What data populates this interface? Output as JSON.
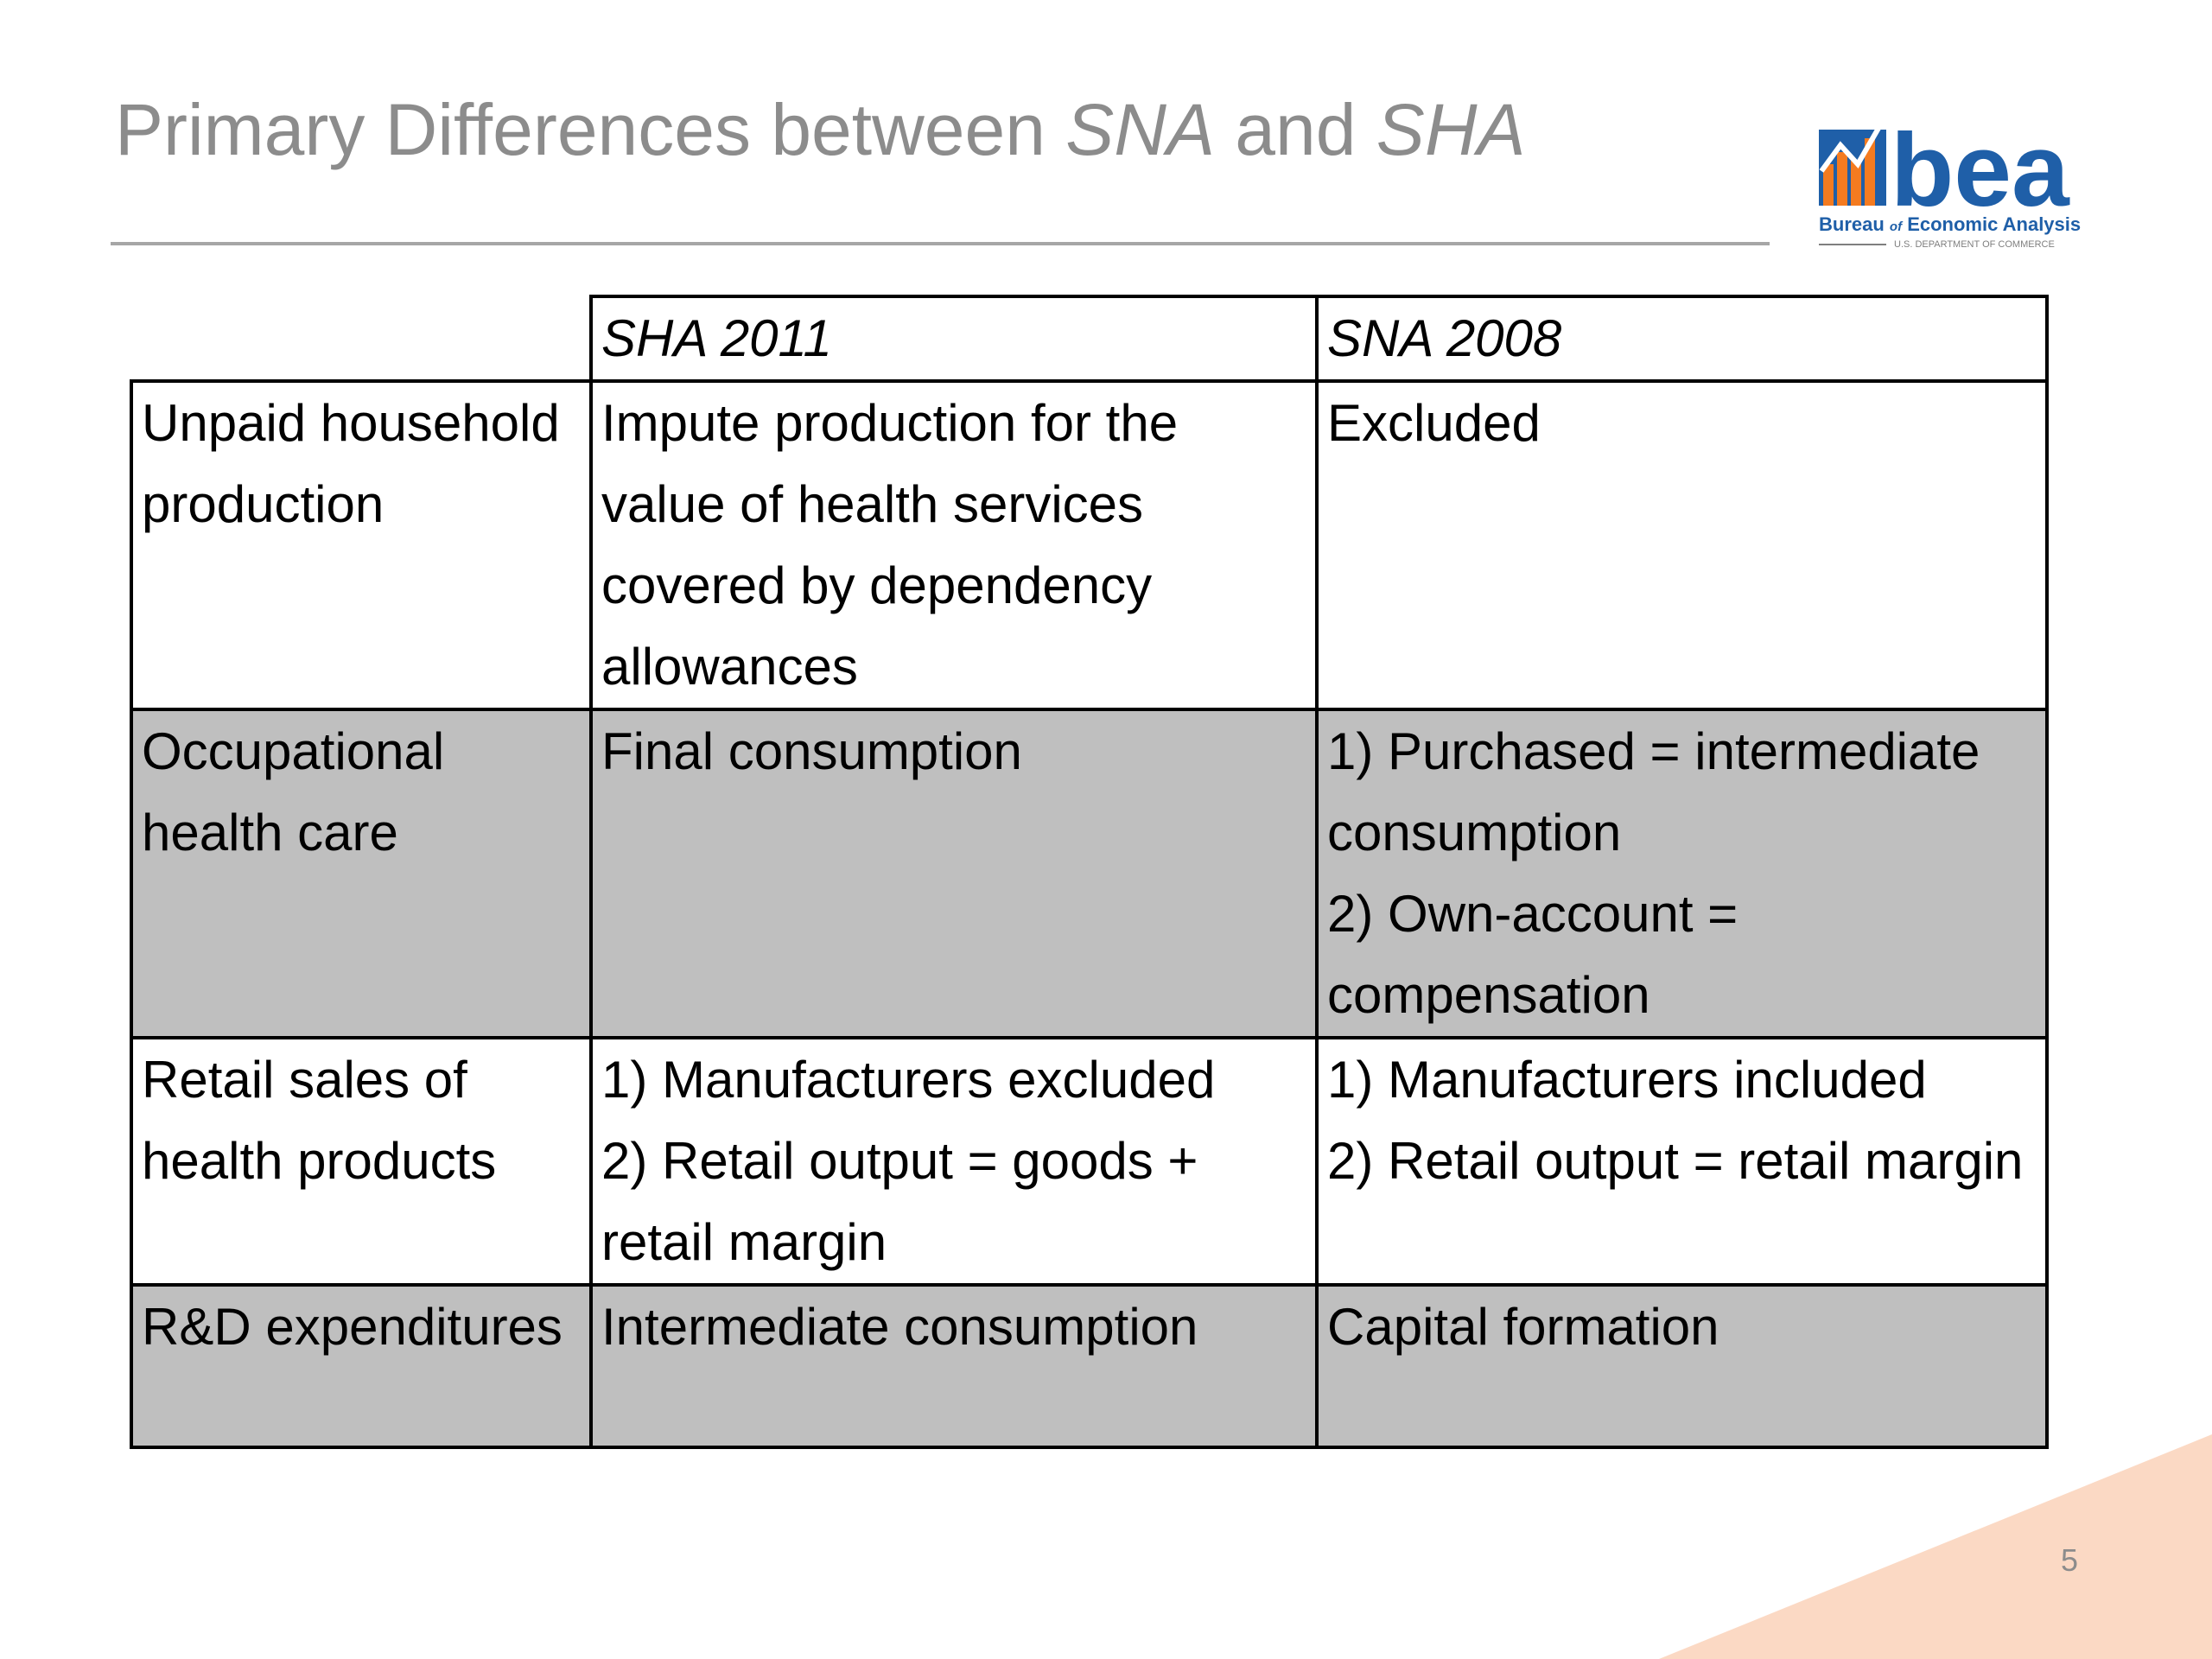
{
  "slide": {
    "title_part1": "Primary Differences between ",
    "title_italic1": "SNA",
    "title_part2": " and ",
    "title_italic2": "SHA",
    "page_number": "5"
  },
  "logo": {
    "wordmark": "bea",
    "line1_a": "Bureau ",
    "line1_of": "of",
    "line1_b": " Economic Analysis",
    "line2": "U.S. DEPARTMENT OF COMMERCE",
    "colors": {
      "blue": "#1f5fa8",
      "orange": "#f47b20"
    }
  },
  "table": {
    "headers": [
      "",
      "SHA 2011",
      "SNA 2008"
    ],
    "rows": [
      {
        "label": "Unpaid household production",
        "sha": [
          "Impute production for the value of health services covered by dependency allowances"
        ],
        "sna": [
          "Excluded"
        ],
        "shaded": false
      },
      {
        "label": "Occupational health care",
        "sha": [
          "Final consumption"
        ],
        "sna": [
          "1) Purchased = intermediate consumption",
          "2) Own-account = compensation"
        ],
        "shaded": true
      },
      {
        "label": "Retail sales of health products",
        "sha": [
          "1) Manufacturers excluded",
          "2) Retail output = goods + retail margin"
        ],
        "sna": [
          "1) Manufacturers included",
          "2) Retail output = retail margin"
        ],
        "shaded": false
      },
      {
        "label": "R&D expenditures",
        "sha": [
          "Intermediate consumption"
        ],
        "sna": [
          "Capital formation"
        ],
        "shaded": true
      }
    ],
    "shade_color": "#bfbfbf"
  },
  "accent_color": "#fbd9c4"
}
